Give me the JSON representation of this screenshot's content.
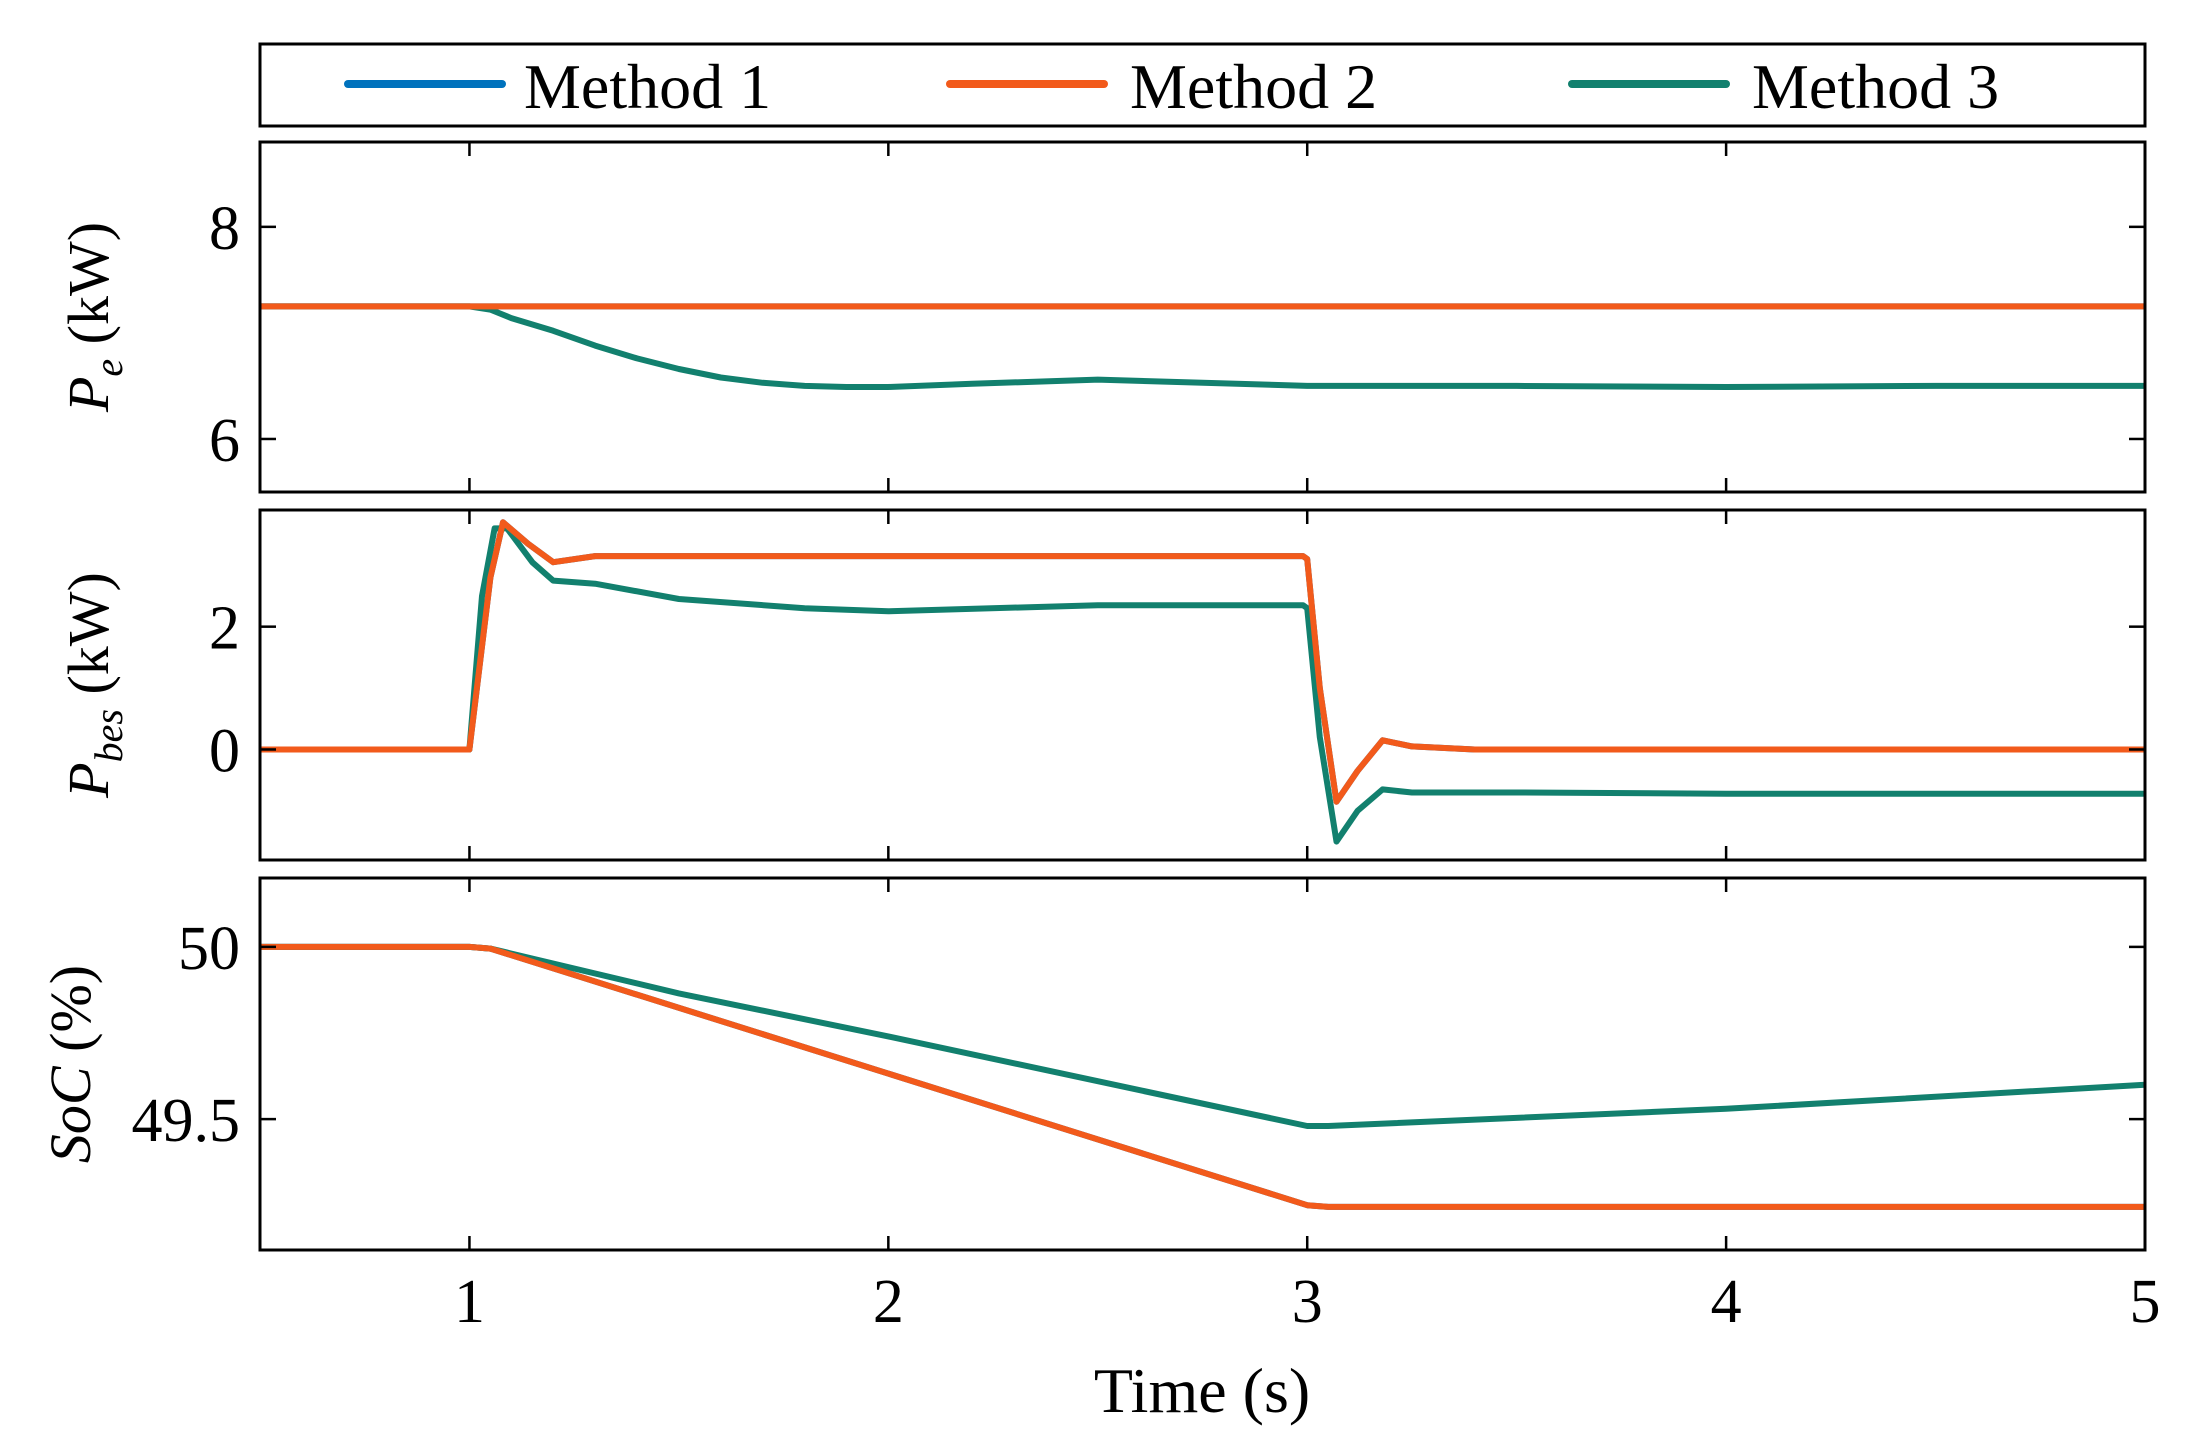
{
  "chart_data": {
    "type": "line",
    "xlabel": "Time (s)",
    "xlim": [
      0.5,
      5
    ],
    "xticks": [
      1,
      2,
      3,
      4,
      5
    ],
    "colors": {
      "Method 1": "#0072BD",
      "Method 2": "#F25A1B",
      "Method 3": "#12806E"
    },
    "legend": {
      "placement": "top",
      "entries": [
        "Method 1",
        "Method 2",
        "Method 3"
      ]
    },
    "panels": [
      {
        "id": "pe",
        "ylabel_main": "P",
        "ylabel_sub": "e",
        "ylabel_unit": " (kW)",
        "ylim": [
          5.5,
          8.8
        ],
        "yticks": [
          6,
          8
        ],
        "ytick_labels": [
          "6",
          "8"
        ],
        "series": [
          {
            "name": "Method 1",
            "x": [
              0.5,
              1.0,
              5.0
            ],
            "y": [
              7.25,
              7.25,
              7.25
            ]
          },
          {
            "name": "Method 3",
            "x": [
              0.5,
              1.0,
              1.05,
              1.1,
              1.2,
              1.3,
              1.4,
              1.5,
              1.6,
              1.7,
              1.8,
              1.9,
              2.0,
              2.2,
              2.5,
              3.0,
              3.5,
              4.0,
              4.5,
              5.0
            ],
            "y": [
              7.25,
              7.25,
              7.22,
              7.14,
              7.02,
              6.88,
              6.76,
              6.66,
              6.58,
              6.53,
              6.5,
              6.49,
              6.49,
              6.52,
              6.56,
              6.5,
              6.5,
              6.49,
              6.5,
              6.5
            ]
          },
          {
            "name": "Method 2",
            "x": [
              0.5,
              1.0,
              5.0
            ],
            "y": [
              7.25,
              7.25,
              7.25
            ]
          }
        ]
      },
      {
        "id": "pbes",
        "ylabel_main": "P",
        "ylabel_sub": "bes",
        "ylabel_unit": " (kW)",
        "ylim": [
          -1.8,
          3.9
        ],
        "yticks": [
          0,
          2
        ],
        "ytick_labels": [
          "0",
          "2"
        ],
        "series": [
          {
            "name": "Method 1",
            "x": [
              0.5,
              1.0,
              1.05,
              1.08,
              1.14,
              1.2,
              1.3,
              2.0,
              2.99,
              3.0,
              3.03,
              3.07,
              3.12,
              3.18,
              3.25,
              3.4,
              5.0
            ],
            "y": [
              0,
              0,
              2.8,
              3.7,
              3.35,
              3.05,
              3.15,
              3.15,
              3.15,
              3.1,
              1.0,
              -0.85,
              -0.35,
              0.15,
              0.05,
              0.0,
              0.0
            ]
          },
          {
            "name": "Method 3",
            "x": [
              0.5,
              1.0,
              1.03,
              1.06,
              1.09,
              1.15,
              1.2,
              1.3,
              1.5,
              1.8,
              2.0,
              2.5,
              2.99,
              3.0,
              3.03,
              3.07,
              3.12,
              3.18,
              3.25,
              3.5,
              4.0,
              4.5,
              5.0
            ],
            "y": [
              0,
              0,
              2.5,
              3.6,
              3.6,
              3.05,
              2.75,
              2.7,
              2.45,
              2.3,
              2.25,
              2.35,
              2.35,
              2.3,
              0.2,
              -1.5,
              -1.0,
              -0.65,
              -0.7,
              -0.7,
              -0.72,
              -0.72,
              -0.72
            ]
          },
          {
            "name": "Method 2",
            "x": [
              0.5,
              1.0,
              1.05,
              1.08,
              1.14,
              1.2,
              1.3,
              2.0,
              2.99,
              3.0,
              3.03,
              3.07,
              3.12,
              3.18,
              3.25,
              3.4,
              5.0
            ],
            "y": [
              0,
              0,
              2.8,
              3.7,
              3.35,
              3.05,
              3.15,
              3.15,
              3.15,
              3.1,
              1.0,
              -0.85,
              -0.35,
              0.15,
              0.05,
              0.0,
              0.0
            ]
          }
        ]
      },
      {
        "id": "soc",
        "ylabel_main": "SoC",
        "ylabel_sub": "",
        "ylabel_unit": " (%)",
        "ylim": [
          49.12,
          50.2
        ],
        "yticks": [
          49.5,
          50
        ],
        "ytick_labels": [
          "49.5",
          "50"
        ],
        "series": [
          {
            "name": "Method 1",
            "x": [
              0.5,
              1.0,
              1.05,
              3.0,
              3.05,
              5.0
            ],
            "y": [
              50.0,
              50.0,
              49.995,
              49.25,
              49.245,
              49.245
            ]
          },
          {
            "name": "Method 3",
            "x": [
              0.5,
              1.0,
              1.05,
              1.5,
              2.0,
              2.5,
              3.0,
              3.05,
              4.0,
              5.0
            ],
            "y": [
              50.0,
              50.0,
              49.995,
              49.865,
              49.74,
              49.61,
              49.48,
              49.48,
              49.53,
              49.6
            ]
          },
          {
            "name": "Method 2",
            "x": [
              0.5,
              1.0,
              1.05,
              3.0,
              3.05,
              5.0
            ],
            "y": [
              50.0,
              50.0,
              49.995,
              49.25,
              49.245,
              49.245
            ]
          }
        ]
      }
    ]
  }
}
